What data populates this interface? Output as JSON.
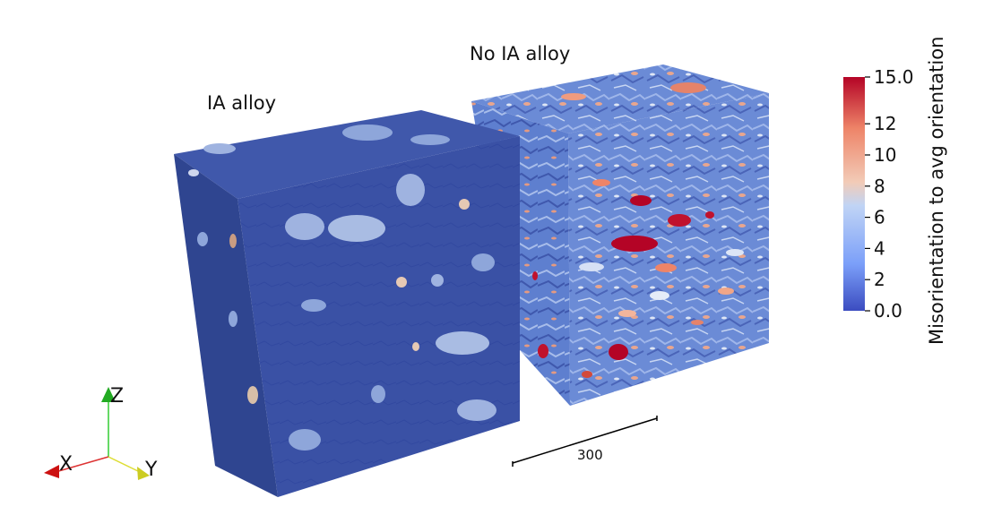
{
  "labels": {
    "left_cube": "IA alloy",
    "right_cube": "No IA alloy"
  },
  "scale_bar": {
    "value": "300"
  },
  "axes_triad": {
    "x": "X",
    "y": "Y",
    "z": "Z"
  },
  "colorbar": {
    "title": "Misorientation to avg orientation",
    "min": 0.0,
    "max": 15.0,
    "ticks": [
      "0.0",
      "2",
      "4",
      "6",
      "8",
      "10",
      "12",
      "15.0"
    ],
    "tick_values": [
      0,
      2,
      4,
      6,
      8,
      10,
      12,
      15
    ],
    "colormap": [
      "#3b4cc0",
      "#7b9ff9",
      "#c0d4f5",
      "#f2cbb7",
      "#ee8468",
      "#b40426"
    ]
  },
  "colors": {
    "ia_face_top": "#3f55a8",
    "ia_face_front": "#344a9c",
    "ia_face_side": "#2a3c85",
    "noia_base": "#6f8fd8"
  }
}
